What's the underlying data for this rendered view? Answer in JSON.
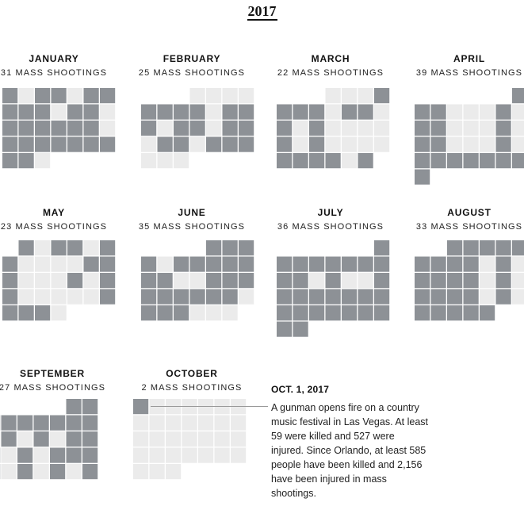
{
  "chart_data": {
    "type": "heatmap",
    "title": "2017",
    "colors": {
      "shooting": "#8d9196",
      "no_shooting": "#ebebeb"
    },
    "months": [
      {
        "name": "JANUARY",
        "count": 31,
        "label": "31 MASS SHOOTINGS",
        "start_weekday": 0,
        "days": 31,
        "shootings": [
          1,
          3,
          4,
          6,
          7,
          8,
          9,
          10,
          12,
          13,
          15,
          16,
          17,
          18,
          19,
          20,
          22,
          23,
          24,
          25,
          26,
          27,
          28,
          29,
          30
        ]
      },
      {
        "name": "FEBRUARY",
        "count": 25,
        "label": "25 MASS SHOOTINGS",
        "start_weekday": 3,
        "days": 28,
        "shootings": [
          5,
          6,
          7,
          8,
          10,
          11,
          12,
          14,
          15,
          17,
          18,
          20,
          21,
          23,
          24,
          25
        ]
      },
      {
        "name": "MARCH",
        "count": 22,
        "label": "22 MASS SHOOTINGS",
        "start_weekday": 3,
        "days": 31,
        "shootings": [
          4,
          5,
          6,
          7,
          9,
          10,
          12,
          14,
          19,
          21,
          26,
          27,
          28,
          29,
          31
        ]
      },
      {
        "name": "APRIL",
        "count": 39,
        "label": "39 MASS SHOOTINGS",
        "start_weekday": 6,
        "days": 30,
        "shootings": [
          1,
          2,
          3,
          7,
          9,
          10,
          14,
          16,
          17,
          21,
          23,
          24,
          25,
          26,
          27,
          28,
          29,
          30
        ]
      },
      {
        "name": "MAY",
        "count": 23,
        "label": "23 MASS SHOOTINGS",
        "start_weekday": 1,
        "days": 31,
        "shootings": [
          1,
          3,
          4,
          6,
          7,
          12,
          13,
          14,
          18,
          20,
          21,
          27,
          28,
          29,
          30
        ]
      },
      {
        "name": "JUNE",
        "count": 35,
        "label": "35 MASS SHOOTINGS",
        "start_weekday": 4,
        "days": 30,
        "shootings": [
          1,
          2,
          3,
          4,
          6,
          7,
          8,
          9,
          10,
          11,
          12,
          15,
          16,
          17,
          18,
          19,
          20,
          21,
          22,
          23,
          25,
          26,
          27
        ]
      },
      {
        "name": "JULY",
        "count": 36,
        "label": "36 MASS SHOOTINGS",
        "start_weekday": 6,
        "days": 31,
        "shootings": [
          1,
          2,
          3,
          4,
          5,
          6,
          7,
          8,
          9,
          10,
          12,
          15,
          16,
          17,
          18,
          19,
          20,
          21,
          22,
          23,
          24,
          25,
          26,
          27,
          28,
          29,
          30,
          31
        ]
      },
      {
        "name": "AUGUST",
        "count": 33,
        "label": "33 MASS SHOOTINGS",
        "start_weekday": 2,
        "days": 31,
        "shootings": [
          1,
          2,
          3,
          4,
          5,
          6,
          7,
          8,
          9,
          11,
          13,
          14,
          15,
          16,
          18,
          20,
          21,
          22,
          23,
          25,
          27,
          28,
          29,
          30,
          31
        ]
      },
      {
        "name": "SEPTEMBER",
        "count": 27,
        "label": "27 MASS SHOOTINGS",
        "start_weekday": 5,
        "days": 30,
        "shootings": [
          1,
          2,
          3,
          4,
          5,
          6,
          7,
          8,
          9,
          11,
          13,
          15,
          16,
          17,
          19,
          21,
          22,
          23,
          24,
          26,
          28,
          30
        ]
      },
      {
        "name": "OCTOBER",
        "count": 2,
        "label": "2 MASS SHOOTINGS",
        "start_weekday": 0,
        "days": 31,
        "shootings": [
          1
        ]
      }
    ]
  },
  "annotation": {
    "date": "OCT. 1, 2017",
    "text": "A gunman opens fire on a country music festival in Las Vegas. At least 59 were killed and 527 were injured. Since Orlando, at least 585 people have been killed and 2,156 have been injured in mass shootings."
  }
}
